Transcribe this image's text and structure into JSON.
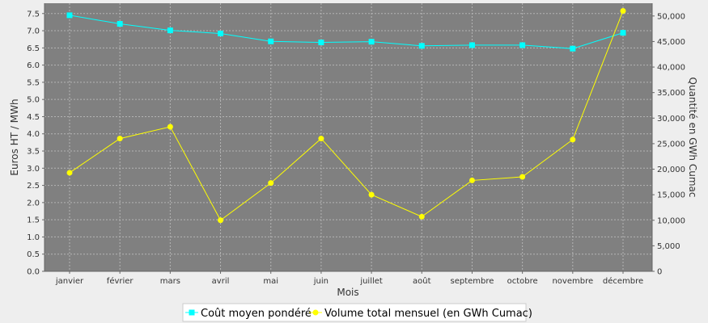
{
  "chart_data": {
    "type": "line",
    "categories": [
      "janvier",
      "février",
      "mars",
      "avril",
      "mai",
      "juin",
      "juillet",
      "août",
      "septembre",
      "octobre",
      "novembre",
      "décembre"
    ],
    "xlabel": "Mois",
    "ylabel_left": "Euros HT / MWh",
    "ylabel_right": "Quantité en GWh Cumac",
    "ylim_left": [
      0,
      7.8
    ],
    "ylim_right": [
      0,
      52500
    ],
    "yticks_left": [
      "0.0",
      "0.5",
      "1.0",
      "1.5",
      "2.0",
      "2.5",
      "3.0",
      "3.5",
      "4.0",
      "4.5",
      "5.0",
      "5.5",
      "6.0",
      "6.5",
      "7.0",
      "7.5"
    ],
    "yticks_right": [
      "0",
      "5,000",
      "10,000",
      "15,000",
      "20,000",
      "25,000",
      "30,000",
      "35,000",
      "40,000",
      "45,000",
      "50,000"
    ],
    "grid": true,
    "legend_position": "bottom",
    "series": [
      {
        "name": "Coût moyen pondéré",
        "axis": "left",
        "color": "#00ffff",
        "marker": "square",
        "values": [
          7.45,
          7.2,
          7.01,
          6.92,
          6.69,
          6.66,
          6.68,
          6.56,
          6.58,
          6.58,
          6.48,
          6.94
        ]
      },
      {
        "name": "Volume total mensuel (en GWh Cumac)",
        "axis": "right",
        "color": "#ffff00",
        "marker": "circle",
        "values": [
          19300,
          26000,
          28300,
          10000,
          17300,
          26000,
          15000,
          10700,
          17800,
          18500,
          25800,
          51000
        ]
      }
    ]
  }
}
